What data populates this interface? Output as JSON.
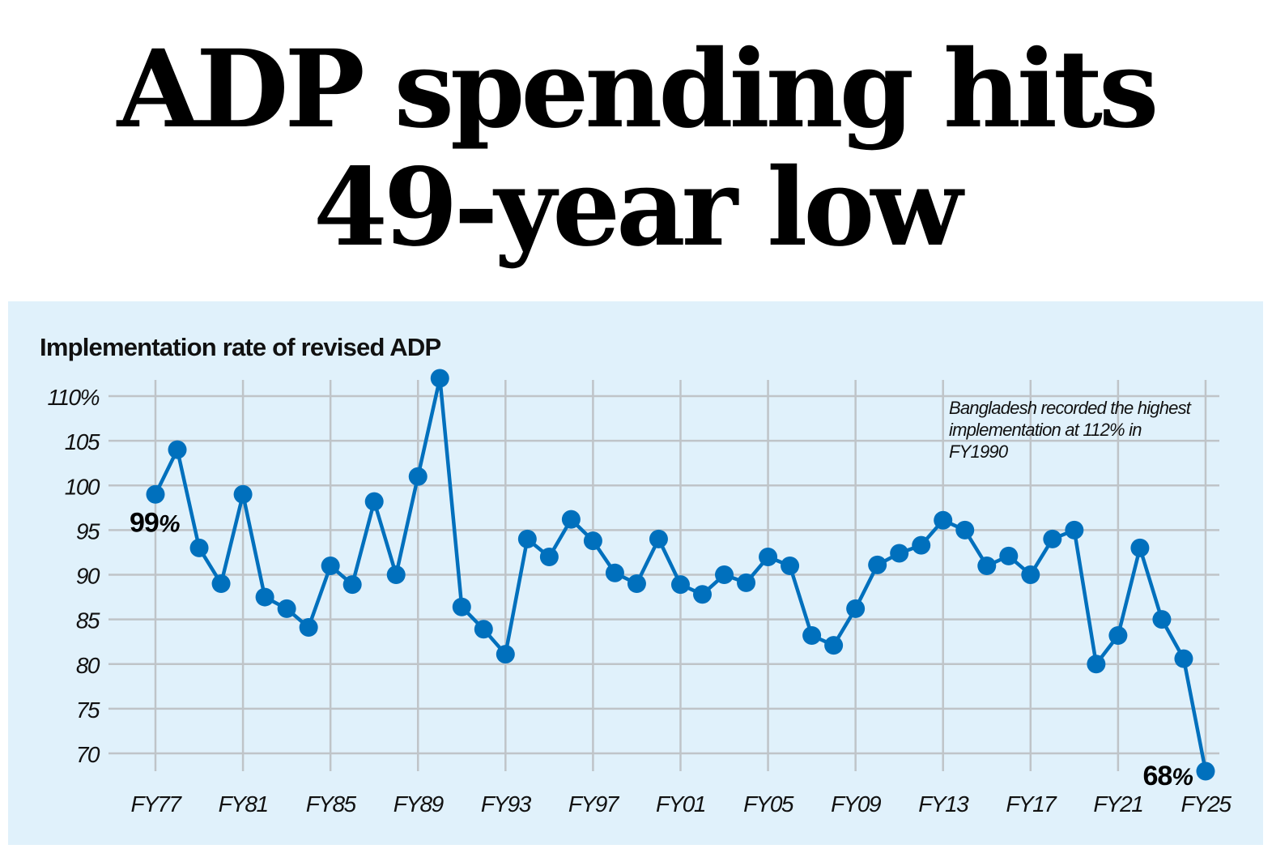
{
  "headline": {
    "line1": "ADP spending hits",
    "line2": "49-year low"
  },
  "colors": {
    "panel_background": "#e0f1fb",
    "series_line": "#0070bd",
    "gridline": "#bfc4c8",
    "text": "#111111"
  },
  "chart_data": {
    "type": "line",
    "title": "Implementation rate of revised ADP",
    "xlabel": "",
    "ylabel": "",
    "ylim": [
      70,
      110
    ],
    "yticks": [
      110,
      105,
      100,
      95,
      90,
      85,
      80,
      75,
      70
    ],
    "ytick_labels": [
      "110%",
      "105",
      "100",
      "95",
      "90",
      "85",
      "80",
      "75",
      "70"
    ],
    "xtick_labels": [
      "FY77",
      "FY81",
      "FY85",
      "FY89",
      "FY93",
      "FY97",
      "FY01",
      "FY05",
      "FY09",
      "FY13",
      "FY17",
      "FY21",
      "FY25"
    ],
    "grid": true,
    "x": [
      "FY77",
      "FY78",
      "FY79",
      "FY80",
      "FY81",
      "FY82",
      "FY83",
      "FY84",
      "FY85",
      "FY86",
      "FY87",
      "FY88",
      "FY89",
      "FY90",
      "FY91",
      "FY92",
      "FY93",
      "FY94",
      "FY95",
      "FY96",
      "FY97",
      "FY98",
      "FY99",
      "FY00",
      "FY01",
      "FY02",
      "FY03",
      "FY04",
      "FY05",
      "FY06",
      "FY07",
      "FY08",
      "FY09",
      "FY10",
      "FY11",
      "FY12",
      "FY13",
      "FY14",
      "FY15",
      "FY16",
      "FY17",
      "FY18",
      "FY19",
      "FY20",
      "FY21",
      "FY22",
      "FY23",
      "FY24",
      "FY25"
    ],
    "series": [
      {
        "name": "Implementation rate (%)",
        "values": [
          99,
          104,
          93,
          89,
          99,
          87.5,
          86.2,
          84.1,
          91,
          88.9,
          98.2,
          90,
          101,
          112,
          86.4,
          83.9,
          81.1,
          94,
          92,
          96.2,
          93.8,
          90.2,
          89,
          94,
          88.9,
          87.8,
          90,
          89.1,
          92,
          91,
          83.2,
          82.1,
          86.2,
          91.1,
          92.4,
          93.3,
          96.1,
          95,
          91,
          92.1,
          90,
          94,
          95,
          80,
          83.2,
          93,
          85,
          80.6,
          68
        ]
      }
    ],
    "annotations": [
      {
        "text_lines": [
          "Bangladesh recorded the highest",
          "implementation at 112% in",
          "FY1990"
        ],
        "position": "top-right"
      },
      {
        "point": "FY77",
        "value_text": "99",
        "unit_text": "%"
      },
      {
        "point": "FY25",
        "value_text": "68",
        "unit_text": "%"
      }
    ]
  }
}
